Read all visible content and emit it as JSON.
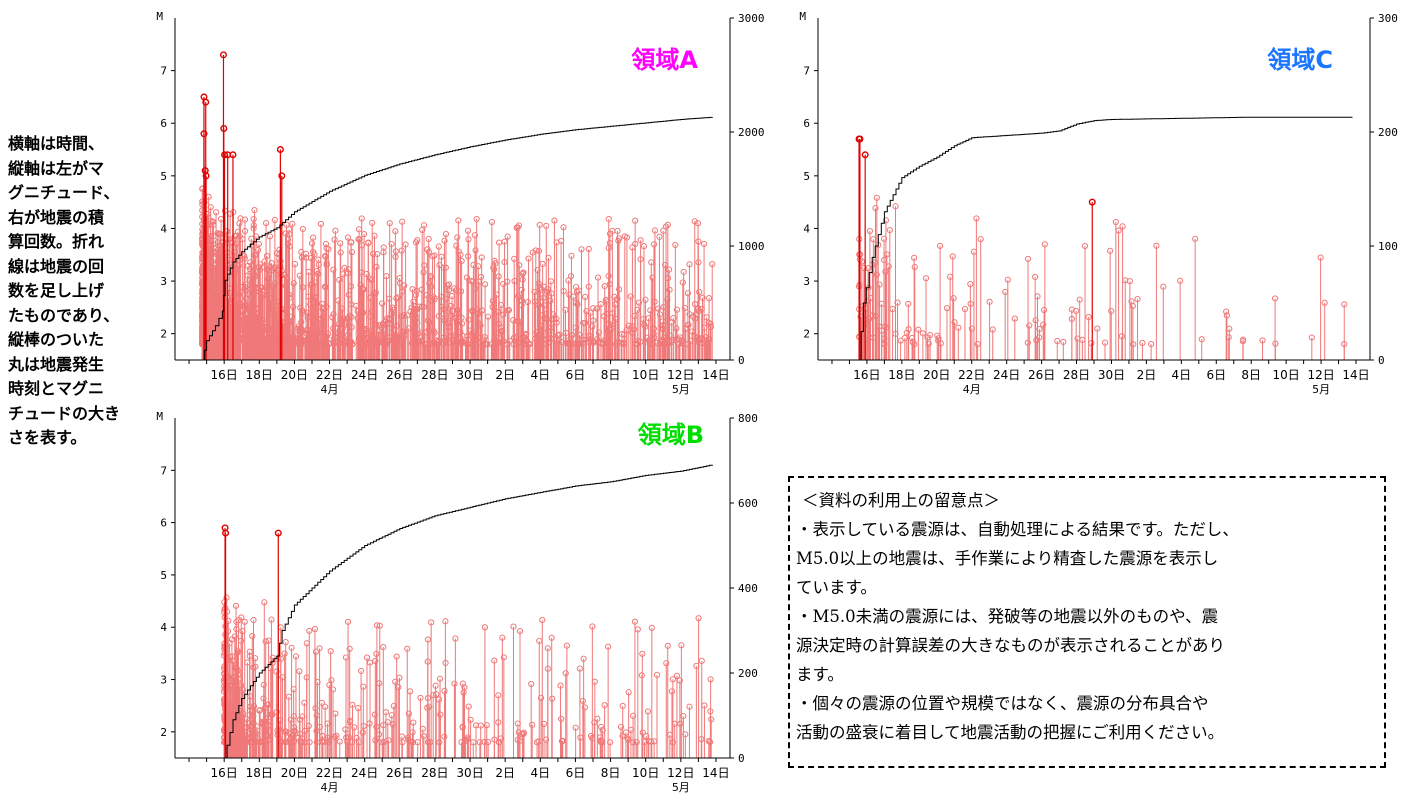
{
  "colors": {
    "stem": "#f07878",
    "highlight": "#e00000",
    "cumulative": "#000000",
    "axis": "#000000"
  },
  "description_lines": [
    "横軸は時間、",
    "縦軸は左がマ",
    "グニチュード、",
    "右が地震の積",
    "算回数。折れ",
    "線は地震の回",
    "数を足し上げ",
    "たものであり、",
    "縦棒のついた",
    "丸は地震発生",
    "時刻とマグニ",
    "チュードの大き",
    "さを表す。"
  ],
  "notes": {
    "title": "＜資料の利用上の留意点＞",
    "lines": [
      "・表示している震源は、自動処理による結果です。ただし、",
      "M5.0以上の地震は、手作業により精査した震源を表示し",
      "ています。",
      "・M5.0未満の震源には、発破等の地震以外のものや、震",
      "源決定時の計算誤差の大きなものが表示されることがあり",
      "ます。",
      "・個々の震源の位置や規模ではなく、震源の分布具合や",
      "活動の盛衰に着目して地震活動の把握にご利用ください。"
    ]
  },
  "chart_data": [
    {
      "id": "A",
      "type": "scatter",
      "title": "領域A",
      "title_color": "#ff00ff",
      "ylabel": "M",
      "ylim": [
        1.5,
        8
      ],
      "yticks": [
        2,
        3,
        4,
        5,
        6,
        7
      ],
      "y2lim": [
        0,
        3000
      ],
      "y2ticks": [
        0,
        1000,
        2000,
        3000
      ],
      "x_tick_labels": [
        "16日",
        "18日",
        "20日",
        "22日",
        "24日",
        "26日",
        "28日",
        "30日",
        "2日",
        "4日",
        "6日",
        "8日",
        "10日",
        "12日",
        "14日"
      ],
      "month_labels": [
        {
          "label": "4月",
          "day": 22
        },
        {
          "label": "5月",
          "day": 42
        }
      ],
      "xlim": [
        13.2,
        44.8
      ],
      "large_events": [
        {
          "t": 14.85,
          "m": 6.5
        },
        {
          "t": 14.95,
          "m": 6.4
        },
        {
          "t": 14.85,
          "m": 5.8
        },
        {
          "t": 14.92,
          "m": 5.1
        },
        {
          "t": 14.97,
          "m": 5.0
        },
        {
          "t": 15.96,
          "m": 7.3
        },
        {
          "t": 15.98,
          "m": 5.9
        },
        {
          "t": 16.02,
          "m": 5.4
        },
        {
          "t": 16.2,
          "m": 5.4
        },
        {
          "t": 16.5,
          "m": 5.4
        },
        {
          "t": 19.2,
          "m": 5.5
        },
        {
          "t": 19.28,
          "m": 5.0
        }
      ],
      "n_small_events": 1650,
      "small_seed": 11,
      "cumulative": [
        [
          14.75,
          0
        ],
        [
          15.0,
          170
        ],
        [
          15.5,
          300
        ],
        [
          15.9,
          430
        ],
        [
          16.05,
          700
        ],
        [
          16.5,
          860
        ],
        [
          17,
          950
        ],
        [
          18,
          1080
        ],
        [
          19,
          1160
        ],
        [
          20,
          1300
        ],
        [
          22,
          1480
        ],
        [
          24,
          1620
        ],
        [
          26,
          1720
        ],
        [
          28,
          1800
        ],
        [
          30,
          1870
        ],
        [
          32,
          1930
        ],
        [
          34,
          1980
        ],
        [
          36,
          2020
        ],
        [
          38,
          2050
        ],
        [
          40,
          2080
        ],
        [
          42,
          2110
        ],
        [
          43.8,
          2130
        ]
      ]
    },
    {
      "id": "B",
      "type": "scatter",
      "title": "領域B",
      "title_color": "#00dd00",
      "ylabel": "M",
      "ylim": [
        1.5,
        8
      ],
      "yticks": [
        2,
        3,
        4,
        5,
        6,
        7
      ],
      "y2lim": [
        0,
        800
      ],
      "y2ticks": [
        0,
        200,
        400,
        600,
        800
      ],
      "x_tick_labels": [
        "16日",
        "18日",
        "20日",
        "22日",
        "24日",
        "26日",
        "28日",
        "30日",
        "2日",
        "4日",
        "6日",
        "8日",
        "10日",
        "12日",
        "14日"
      ],
      "month_labels": [
        {
          "label": "4月",
          "day": 22
        },
        {
          "label": "5月",
          "day": 42
        }
      ],
      "xlim": [
        13.2,
        44.8
      ],
      "large_events": [
        {
          "t": 16.05,
          "m": 5.9
        },
        {
          "t": 16.08,
          "m": 5.8
        },
        {
          "t": 19.08,
          "m": 5.8
        }
      ],
      "n_small_events": 520,
      "small_seed": 27,
      "cumulative": [
        [
          16.0,
          0
        ],
        [
          16.5,
          90
        ],
        [
          17,
          140
        ],
        [
          18,
          200
        ],
        [
          19,
          240
        ],
        [
          19.3,
          300
        ],
        [
          20,
          360
        ],
        [
          21,
          400
        ],
        [
          22,
          440
        ],
        [
          24,
          500
        ],
        [
          26,
          540
        ],
        [
          28,
          570
        ],
        [
          30,
          590
        ],
        [
          32,
          610
        ],
        [
          34,
          625
        ],
        [
          36,
          640
        ],
        [
          38,
          650
        ],
        [
          40,
          665
        ],
        [
          42,
          675
        ],
        [
          43.8,
          690
        ]
      ]
    },
    {
      "id": "C",
      "type": "scatter",
      "title": "領域C",
      "title_color": "#1a75ff",
      "ylabel": "M",
      "ylim": [
        1.5,
        8
      ],
      "yticks": [
        2,
        3,
        4,
        5,
        6,
        7
      ],
      "y2lim": [
        0,
        300
      ],
      "y2ticks": [
        0,
        100,
        200,
        300
      ],
      "x_tick_labels": [
        "16日",
        "18日",
        "20日",
        "22日",
        "24日",
        "26日",
        "28日",
        "30日",
        "2日",
        "4日",
        "6日",
        "8日",
        "10日",
        "12日",
        "14日"
      ],
      "month_labels": [
        {
          "label": "4月",
          "day": 22
        },
        {
          "label": "5月",
          "day": 42
        }
      ],
      "xlim": [
        13.2,
        44.8
      ],
      "large_events": [
        {
          "t": 15.55,
          "m": 5.7
        },
        {
          "t": 15.6,
          "m": 5.7
        },
        {
          "t": 15.9,
          "m": 5.4
        },
        {
          "t": 28.9,
          "m": 4.5
        }
      ],
      "n_small_events": 160,
      "small_seed": 5,
      "cumulative": [
        [
          15.55,
          0
        ],
        [
          15.8,
          50
        ],
        [
          16.3,
          90
        ],
        [
          17,
          130
        ],
        [
          18,
          160
        ],
        [
          19,
          170
        ],
        [
          20,
          178
        ],
        [
          21,
          188
        ],
        [
          22,
          195
        ],
        [
          24,
          197
        ],
        [
          26,
          199
        ],
        [
          27,
          201
        ],
        [
          28,
          207
        ],
        [
          29,
          210
        ],
        [
          30,
          211
        ],
        [
          34,
          212
        ],
        [
          38,
          213
        ],
        [
          43.8,
          213
        ]
      ]
    }
  ]
}
